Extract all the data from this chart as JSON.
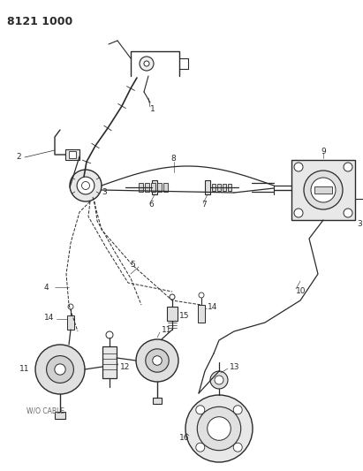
{
  "title": "8121 1000",
  "bg": "#ffffff",
  "lc": "#2a2a2a",
  "figsize": [
    4.11,
    5.33
  ],
  "dpi": 100,
  "wo_cable": "W/O CABLE"
}
